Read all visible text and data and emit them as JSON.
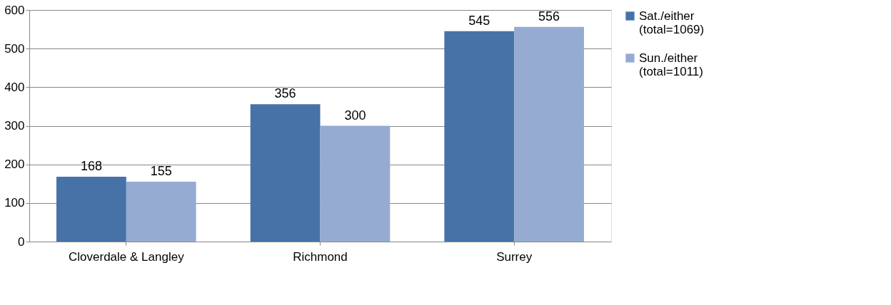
{
  "chart_data": {
    "type": "bar",
    "categories": [
      "Cloverdale & Langley",
      "Richmond",
      "Surrey"
    ],
    "series": [
      {
        "name": "Sat./either (total=1069)",
        "color": "#4672a8",
        "values": [
          168,
          356,
          545
        ]
      },
      {
        "name": "Sun./either (total=1011)",
        "color": "#95abd2",
        "values": [
          155,
          300,
          556
        ]
      }
    ],
    "ylim": [
      0,
      600
    ],
    "yticks": [
      0,
      100,
      200,
      300,
      400,
      500,
      600
    ],
    "grid": "y",
    "legend": "right",
    "data_labels": true
  }
}
